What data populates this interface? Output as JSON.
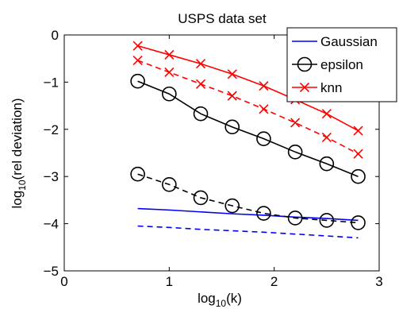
{
  "chart_data": {
    "type": "line",
    "title": "USPS data set",
    "xlabel": {
      "base": "log",
      "sub": "10",
      "tail": "(k)"
    },
    "ylabel": {
      "base": "log",
      "sub": "10",
      "tail": "(rel deviation)"
    },
    "xlim": [
      0,
      3
    ],
    "ylim": [
      -5,
      0
    ],
    "xticks": [
      0,
      1,
      2,
      3
    ],
    "xtick_labels": [
      "0",
      "1",
      "2",
      "3"
    ],
    "yticks": [
      -5,
      -4,
      -3,
      -2,
      -1,
      0
    ],
    "ytick_labels": [
      "−5",
      "−4",
      "−3",
      "−2",
      "−1",
      "0"
    ],
    "grid": false,
    "legend_position": "top-right",
    "legend": [
      {
        "label": "Gaussian",
        "color": "#0000ff",
        "marker": "none"
      },
      {
        "label": "epsilon",
        "color": "#000000",
        "marker": "circle"
      },
      {
        "label": "knn",
        "color": "#ff0000",
        "marker": "x"
      }
    ],
    "series": [
      {
        "color": "#0000ff",
        "dash": "solid",
        "marker": "none",
        "x": [
          0.7,
          1.0,
          1.3,
          1.6,
          1.9,
          2.2,
          2.5,
          2.8
        ],
        "y": [
          -3.68,
          -3.71,
          -3.75,
          -3.79,
          -3.82,
          -3.86,
          -3.89,
          -3.93
        ]
      },
      {
        "color": "#0000ff",
        "dash": "dashed",
        "marker": "none",
        "x": [
          0.7,
          1.0,
          1.3,
          1.6,
          1.9,
          2.2,
          2.5,
          2.8
        ],
        "y": [
          -4.05,
          -4.08,
          -4.12,
          -4.15,
          -4.18,
          -4.22,
          -4.26,
          -4.3
        ]
      },
      {
        "color": "#000000",
        "dash": "solid",
        "marker": "circle",
        "x": [
          0.7,
          1.0,
          1.3,
          1.6,
          1.9,
          2.2,
          2.5,
          2.8
        ],
        "y": [
          -0.98,
          -1.25,
          -1.67,
          -1.95,
          -2.2,
          -2.48,
          -2.73,
          -3.0
        ]
      },
      {
        "color": "#000000",
        "dash": "dashed",
        "marker": "circle",
        "x": [
          0.7,
          1.0,
          1.3,
          1.6,
          1.9,
          2.2,
          2.5,
          2.8
        ],
        "y": [
          -2.95,
          -3.17,
          -3.45,
          -3.62,
          -3.78,
          -3.88,
          -3.93,
          -3.98
        ]
      },
      {
        "color": "#ff0000",
        "dash": "solid",
        "marker": "x",
        "x": [
          0.7,
          1.0,
          1.3,
          1.6,
          1.9,
          2.2,
          2.5,
          2.8
        ],
        "y": [
          -0.23,
          -0.42,
          -0.61,
          -0.83,
          -1.08,
          -1.37,
          -1.67,
          -2.03
        ]
      },
      {
        "color": "#ff0000",
        "dash": "dashed",
        "marker": "x",
        "x": [
          0.7,
          1.0,
          1.3,
          1.6,
          1.9,
          2.2,
          2.5,
          2.8
        ],
        "y": [
          -0.54,
          -0.79,
          -1.04,
          -1.29,
          -1.57,
          -1.86,
          -2.17,
          -2.52
        ]
      }
    ]
  }
}
